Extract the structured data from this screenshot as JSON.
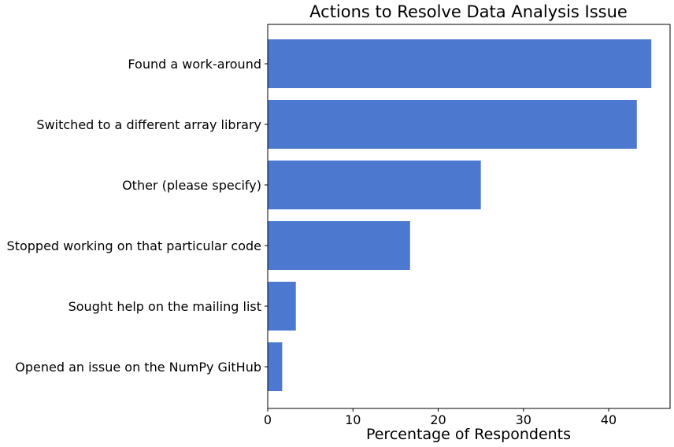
{
  "chart_data": {
    "type": "bar",
    "orientation": "horizontal",
    "title": "Actions to Resolve Data Analysis Issue",
    "xlabel": "Percentage of Respondents",
    "ylabel": "",
    "categories": [
      "Found a work-around",
      "Switched to a different array library",
      "Other (please specify)",
      "Stopped working on that particular code",
      "Sought help on the mailing list",
      "Opened an issue on the NumPy GitHub"
    ],
    "values": [
      45.0,
      43.3,
      25.0,
      16.7,
      3.3,
      1.7
    ],
    "xlim": [
      0,
      47.2
    ],
    "xticks": [
      0,
      10,
      20,
      30,
      40
    ],
    "bar_color": "#4c78d0",
    "grid": false,
    "legend": "none"
  }
}
